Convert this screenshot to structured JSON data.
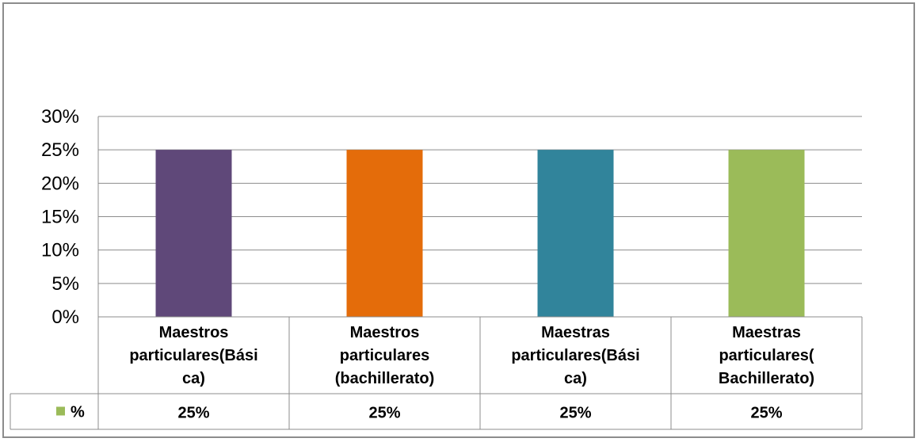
{
  "chart_data": {
    "type": "bar",
    "categories": [
      [
        "Maestros",
        "particulares(Bási",
        "ca)"
      ],
      [
        "Maestros",
        "particulares",
        "(bachillerato)"
      ],
      [
        "Maestras",
        "particulares(Bási",
        "ca)"
      ],
      [
        "Maestras",
        "particulares(",
        "Bachillerato)"
      ]
    ],
    "series": [
      {
        "name": "%",
        "values": [
          25,
          25,
          25,
          25
        ],
        "value_labels": [
          "25%",
          "25%",
          "25%",
          "25%"
        ]
      }
    ],
    "bar_colors": [
      "#5f4879",
      "#e46c0a",
      "#31849b",
      "#9bbb59"
    ],
    "legend_key_color": "#9bbb59",
    "ylim": [
      0,
      30
    ],
    "yticks": [
      "0%",
      "5%",
      "10%",
      "15%",
      "20%",
      "25%",
      "30%"
    ],
    "grid": true,
    "data_table": true,
    "title": "",
    "xlabel": "",
    "ylabel": ""
  }
}
